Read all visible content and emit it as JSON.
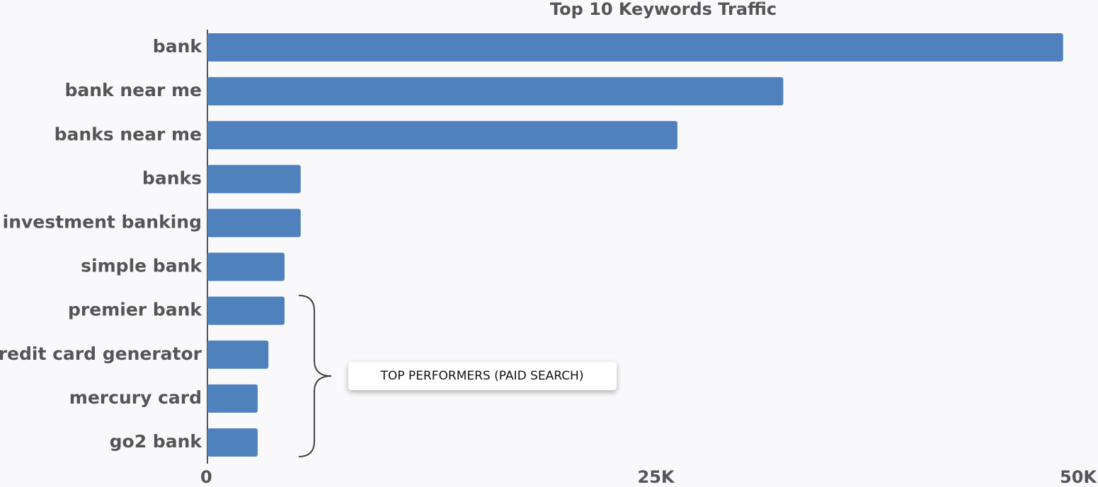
{
  "chart_data": {
    "type": "bar",
    "orientation": "horizontal",
    "title": "Top 10 Keywords Traffic",
    "categories": [
      "bank",
      "bank near me",
      "banks near me",
      "banks",
      "investment banking",
      "simple bank",
      "premier bank",
      "credit card generator",
      "mercury card",
      "go2 bank"
    ],
    "values": [
      47700,
      32100,
      26200,
      5200,
      5200,
      4300,
      4300,
      3400,
      2800,
      2800
    ],
    "color": "#4f81bd",
    "xlim": [
      0,
      50000
    ],
    "xticks": [
      0,
      {
        "value": 25000,
        "label": "25K"
      },
      {
        "value": 50000,
        "label": "50K"
      }
    ],
    "grid": false,
    "annotation": "TOP PERFORMERS (PAID SEARCH)"
  }
}
